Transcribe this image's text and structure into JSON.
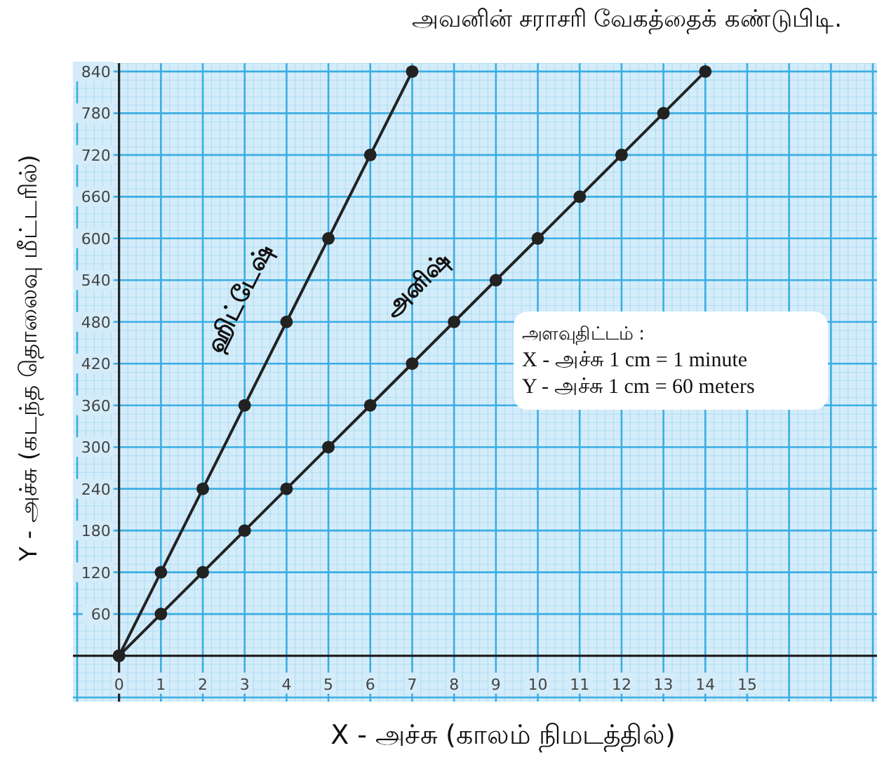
{
  "chart_data": {
    "type": "line",
    "title": "அவனின் சராசரி வேகத்தைக் கண்டுபிடி.",
    "xlabel": "X - அச்சு (காலம்  நிமடத்தில்)",
    "ylabel": "Y - அச்சு (கடந்த தொலைவு மீட்டரில்)",
    "xlim": [
      -1.1,
      18.1
    ],
    "ylim": [
      -66,
      852
    ],
    "xticks": [
      0,
      1,
      2,
      3,
      4,
      5,
      6,
      7,
      8,
      9,
      10,
      11,
      12,
      13,
      14,
      15
    ],
    "yticks": [
      60,
      120,
      180,
      240,
      300,
      360,
      420,
      480,
      540,
      600,
      660,
      720,
      780,
      840
    ],
    "grid": true,
    "marker": "circle",
    "line_style": "solid",
    "series": [
      {
        "name": "ஹிட்டேஷ்",
        "color": "#222222",
        "x": [
          0,
          1,
          2,
          3,
          4,
          5,
          6,
          7
        ],
        "values": [
          0,
          120,
          240,
          360,
          480,
          600,
          720,
          840
        ]
      },
      {
        "name": "அனிஷ்",
        "color": "#222222",
        "x": [
          0,
          1,
          2,
          3,
          4,
          5,
          6,
          7,
          8,
          9,
          10,
          11,
          12,
          13,
          14
        ],
        "values": [
          0,
          60,
          120,
          180,
          240,
          300,
          360,
          420,
          480,
          540,
          600,
          660,
          720,
          780,
          840
        ]
      }
    ],
    "annotations": [
      "அளவுதிட்டம் :",
      "X - அச்சு 1 cm = 1 minute",
      "Y - அச்சு 1 cm = 60 meters"
    ]
  }
}
